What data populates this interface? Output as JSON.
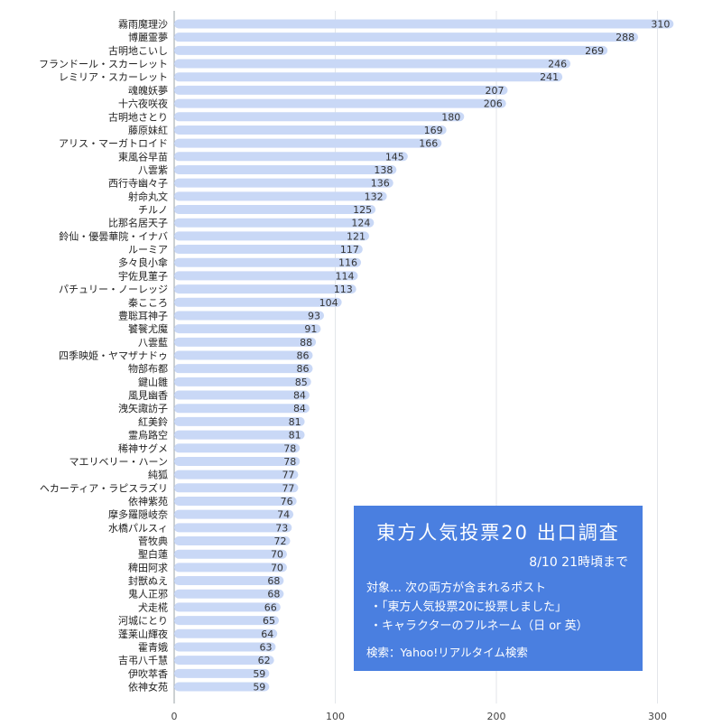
{
  "chart_data": {
    "type": "bar",
    "orientation": "horizontal",
    "title": "",
    "xlabel": "",
    "ylabel": "",
    "xlim": [
      0,
      340
    ],
    "xticks": [
      0,
      100,
      200,
      300
    ],
    "grid": "vertical",
    "bar_color": "#c9d8f6",
    "categories": [
      "霧雨魔理沙",
      "博麗霊夢",
      "古明地こいし",
      "フランドール・スカーレット",
      "レミリア・スカーレット",
      "魂魄妖夢",
      "十六夜咲夜",
      "古明地さとり",
      "藤原妹紅",
      "アリス・マーガトロイド",
      "東風谷早苗",
      "八雲紫",
      "西行寺幽々子",
      "射命丸文",
      "チルノ",
      "比那名居天子",
      "鈴仙・優曇華院・イナバ",
      "ルーミア",
      "多々良小傘",
      "宇佐見菫子",
      "パチュリー・ノーレッジ",
      "秦こころ",
      "豊聡耳神子",
      "饕餮尤魔",
      "八雲藍",
      "四季映姫・ヤマザナドゥ",
      "物部布都",
      "鍵山雛",
      "風見幽香",
      "洩矢諏訪子",
      "紅美鈴",
      "霊烏路空",
      "稀神サグメ",
      "マエリベリー・ハーン",
      "純狐",
      "ヘカーティア・ラピスラズリ",
      "依神紫苑",
      "摩多羅隠岐奈",
      "水橋パルスィ",
      "菅牧典",
      "聖白蓮",
      "稗田阿求",
      "封獣ぬえ",
      "鬼人正邪",
      "犬走椛",
      "河城にとり",
      "蓬莱山輝夜",
      "霍青娥",
      "吉弔八千慧",
      "伊吹萃香",
      "依神女苑"
    ],
    "values": [
      310,
      288,
      269,
      246,
      241,
      207,
      206,
      180,
      169,
      166,
      145,
      138,
      136,
      132,
      125,
      124,
      121,
      117,
      116,
      114,
      113,
      104,
      93,
      91,
      88,
      86,
      86,
      85,
      84,
      84,
      81,
      81,
      78,
      78,
      77,
      77,
      76,
      74,
      73,
      72,
      70,
      70,
      68,
      68,
      66,
      65,
      64,
      63,
      62,
      59,
      59
    ]
  },
  "info_box": {
    "title": "東方人気投票20 出口調査",
    "date": "8/10 21時頃まで",
    "condition": "対象… 次の両方が含まれるポスト",
    "bullets": [
      "・「東方人気投票20に投票しました」",
      "・キャラクターのフルネーム（日 or 英）"
    ],
    "search": "検索：Yahoo!リアルタイム検索",
    "background": "#4a7fe0"
  }
}
